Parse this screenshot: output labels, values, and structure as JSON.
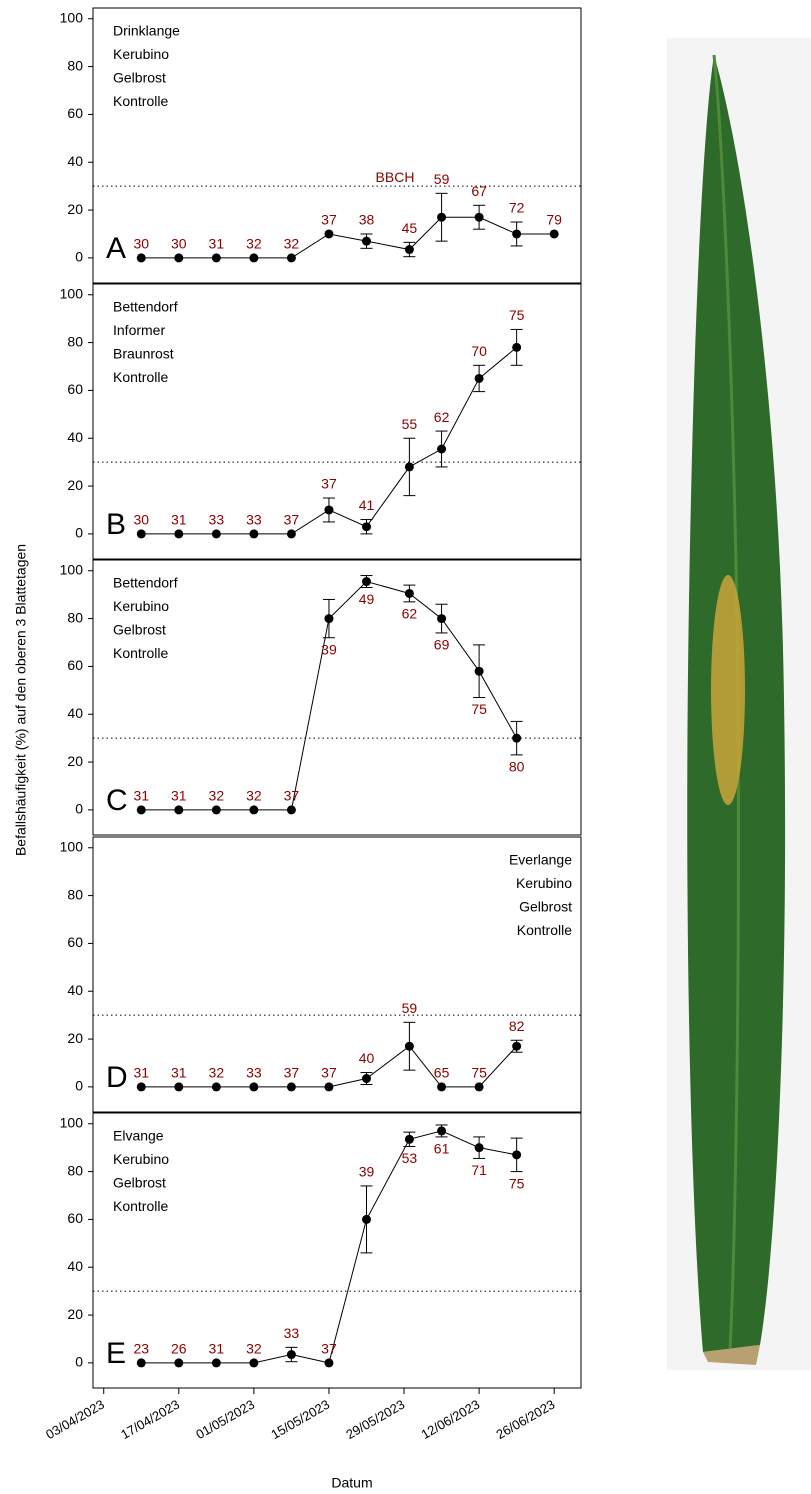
{
  "ylabel": "Befallshäufigkeit (%) auf den oberen 3 Blattetagen",
  "chart_data": [
    {
      "type": "line",
      "label": "A",
      "annotation": [
        "Drinklange",
        "Kerubino",
        "Gelbrost",
        "Kontrolle"
      ],
      "bbch_title": "BBCH",
      "x": [
        "2023-04-10",
        "2023-04-17",
        "2023-04-24",
        "2023-05-01",
        "2023-05-08",
        "2023-05-15",
        "2023-05-22",
        "2023-05-30",
        "2023-06-05",
        "2023-06-12",
        "2023-06-19",
        "2023-06-26"
      ],
      "values": [
        0,
        0,
        0,
        0,
        0,
        10,
        7,
        3.5,
        17,
        17,
        10,
        10
      ],
      "errors": [
        0,
        0,
        0,
        0,
        0,
        0,
        3,
        3,
        10,
        5,
        5,
        0
      ],
      "bbch": [
        30,
        30,
        31,
        32,
        32,
        37,
        38,
        45,
        59,
        67,
        72,
        79
      ],
      "xlim": [
        "2023-04-01",
        "2023-07-01"
      ],
      "ylim": [
        -10.5,
        104.5
      ],
      "yticks": [
        0,
        20,
        40,
        60,
        80,
        100
      ],
      "threshold": 30,
      "color": "#000000",
      "label_color": "#8b0000"
    },
    {
      "type": "line",
      "label": "B",
      "annotation": [
        "Bettendorf",
        "Informer",
        "Braunrost",
        "Kontrolle"
      ],
      "x": [
        "2023-04-10",
        "2023-04-17",
        "2023-04-24",
        "2023-05-01",
        "2023-05-08",
        "2023-05-15",
        "2023-05-22",
        "2023-05-30",
        "2023-06-05",
        "2023-06-12",
        "2023-06-19"
      ],
      "values": [
        0,
        0,
        0,
        0,
        0,
        10,
        3,
        28,
        35.5,
        65,
        78
      ],
      "errors": [
        0,
        0,
        0,
        0,
        0,
        5,
        3,
        12,
        7.5,
        5.5,
        7.5
      ],
      "bbch": [
        30,
        31,
        33,
        33,
        37,
        37,
        41,
        55,
        62,
        70,
        75
      ],
      "xlim": [
        "2023-04-01",
        "2023-07-01"
      ],
      "ylim": [
        -10.5,
        104.5
      ],
      "yticks": [
        0,
        20,
        40,
        60,
        80,
        100
      ],
      "threshold": 30,
      "color": "#000000",
      "label_color": "#8b0000"
    },
    {
      "type": "line",
      "label": "C",
      "annotation": [
        "Bettendorf",
        "Kerubino",
        "Gelbrost",
        "Kontrolle"
      ],
      "x": [
        "2023-04-10",
        "2023-04-17",
        "2023-04-24",
        "2023-05-01",
        "2023-05-08",
        "2023-05-15",
        "2023-05-22",
        "2023-05-30",
        "2023-06-05",
        "2023-06-12",
        "2023-06-19"
      ],
      "values": [
        0,
        0,
        0,
        0,
        0,
        80,
        95.5,
        90.5,
        80,
        58,
        30
      ],
      "errors": [
        0,
        0,
        0,
        0,
        0,
        8,
        2.5,
        3.5,
        6,
        11,
        7
      ],
      "bbch": [
        31,
        31,
        32,
        32,
        37,
        39,
        49,
        62,
        69,
        75,
        80
      ],
      "xlim": [
        "2023-04-01",
        "2023-07-01"
      ],
      "ylim": [
        -10.5,
        104.5
      ],
      "yticks": [
        0,
        20,
        40,
        60,
        80,
        100
      ],
      "threshold": 30,
      "color": "#000000",
      "label_color": "#8b0000"
    },
    {
      "type": "line",
      "label": "D",
      "annotation": [
        "Everlange",
        "Kerubino",
        "Gelbrost",
        "Kontrolle"
      ],
      "x": [
        "2023-04-10",
        "2023-04-17",
        "2023-04-24",
        "2023-05-01",
        "2023-05-08",
        "2023-05-15",
        "2023-05-22",
        "2023-05-30",
        "2023-06-05",
        "2023-06-12",
        "2023-06-19"
      ],
      "values": [
        0,
        0,
        0,
        0,
        0,
        0,
        3.5,
        17,
        0,
        0,
        17
      ],
      "errors": [
        0,
        0,
        0,
        0,
        0,
        0,
        2.5,
        10,
        0,
        0,
        2.5
      ],
      "bbch": [
        31,
        31,
        32,
        33,
        37,
        37,
        40,
        59,
        65,
        75,
        82
      ],
      "xlim": [
        "2023-04-01",
        "2023-07-01"
      ],
      "ylim": [
        -10.5,
        104.5
      ],
      "yticks": [
        0,
        20,
        40,
        60,
        80,
        100
      ],
      "threshold": 30,
      "color": "#000000",
      "label_color": "#8b0000"
    },
    {
      "type": "line",
      "label": "E",
      "annotation": [
        "Elvange",
        "Kerubino",
        "Gelbrost",
        "Kontrolle"
      ],
      "x": [
        "2023-04-10",
        "2023-04-17",
        "2023-04-24",
        "2023-05-01",
        "2023-05-08",
        "2023-05-15",
        "2023-05-22",
        "2023-05-30",
        "2023-06-05",
        "2023-06-12",
        "2023-06-19"
      ],
      "values": [
        0,
        0,
        0,
        0,
        3.5,
        0,
        60,
        93.5,
        97,
        90,
        87
      ],
      "errors": [
        0,
        0,
        0,
        0,
        3,
        0,
        14,
        3,
        2.5,
        4.5,
        7
      ],
      "bbch": [
        23,
        26,
        31,
        32,
        33,
        37,
        39,
        53,
        61,
        71,
        75
      ],
      "xlim": [
        "2023-04-01",
        "2023-07-01"
      ],
      "ylim": [
        -10.5,
        104.5
      ],
      "yticks": [
        0,
        20,
        40,
        60,
        80,
        100
      ],
      "threshold": 30,
      "color": "#000000",
      "label_color": "#8b0000",
      "xlabel": "Datum",
      "xticks": [
        {
          "value": "2023-04-03",
          "label": "03/04/2023"
        },
        {
          "value": "2023-04-17",
          "label": "17/04/2023"
        },
        {
          "value": "2023-05-01",
          "label": "01/05/2023"
        },
        {
          "value": "2023-05-15",
          "label": "15/05/2023"
        },
        {
          "value": "2023-05-29",
          "label": "29/05/2023"
        },
        {
          "value": "2023-06-12",
          "label": "12/06/2023"
        },
        {
          "value": "2023-06-26",
          "label": "26/06/2023"
        }
      ]
    }
  ]
}
